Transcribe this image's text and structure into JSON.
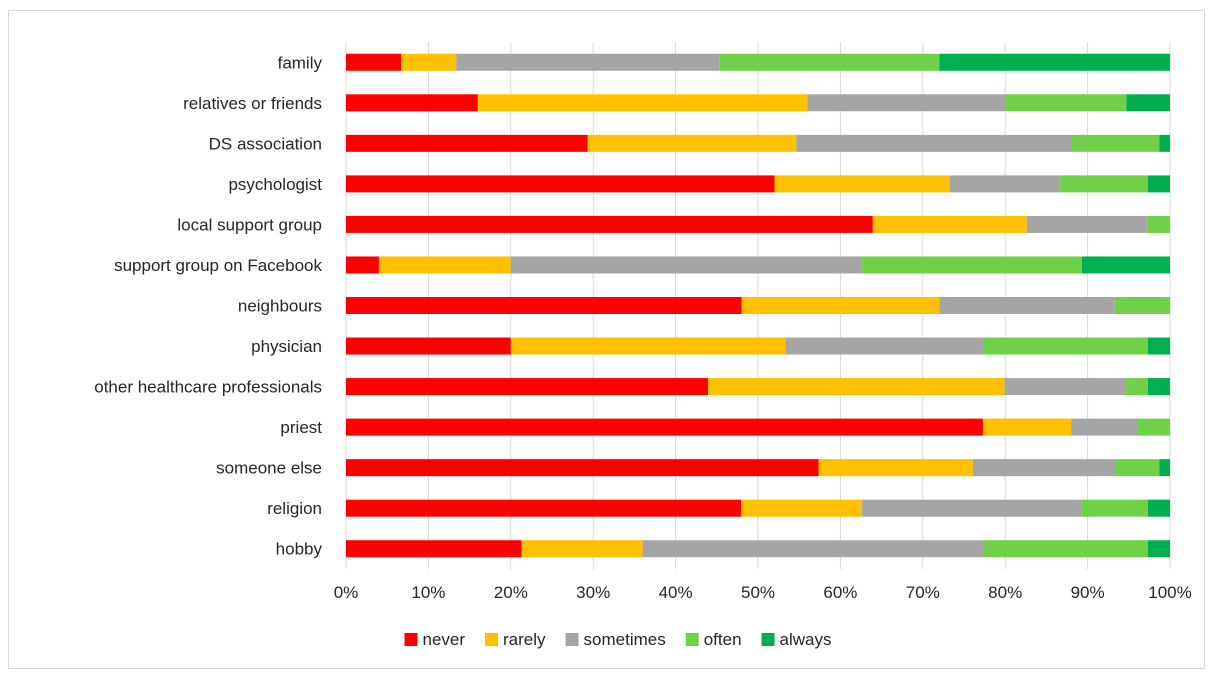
{
  "chart_data": {
    "type": "bar",
    "orientation": "horizontal",
    "stacked": "percent",
    "title": "",
    "xlabel": "",
    "ylabel": "",
    "xlim": [
      0,
      100
    ],
    "grid": true,
    "legend_position": "bottom",
    "categories": [
      "family",
      "relatives or friends",
      "DS association",
      "psychologist",
      "local support group",
      "support group on Facebook",
      "neighbours",
      "physician",
      "other healthcare professionals",
      "priest",
      "someone else",
      "religion",
      "hobby"
    ],
    "series": [
      {
        "name": "never",
        "color": "#ff0000",
        "values": [
          6.7,
          16,
          29.3,
          52,
          64,
          4,
          48,
          20,
          44,
          77.3,
          57.3,
          48,
          21.3
        ]
      },
      {
        "name": "rarely",
        "color": "#ffc000",
        "values": [
          6.7,
          40,
          25.3,
          21.3,
          18.7,
          16,
          24,
          33.3,
          36,
          10.7,
          18.7,
          14.7,
          14.7
        ]
      },
      {
        "name": "sometimes",
        "color": "#a5a5a5",
        "values": [
          32,
          24,
          33.3,
          13.3,
          14.7,
          42.7,
          21.3,
          24,
          14.7,
          8,
          17.3,
          26.7,
          41.3
        ]
      },
      {
        "name": "often",
        "color": "#70d048",
        "values": [
          26.7,
          14.7,
          10.7,
          10.7,
          2.7,
          26.7,
          6.7,
          20,
          2.7,
          4,
          5.3,
          8,
          20
        ]
      },
      {
        "name": "always",
        "color": "#00b050",
        "values": [
          28,
          5.3,
          1.3,
          2.7,
          0,
          10.7,
          0,
          2.7,
          2.7,
          0,
          1.3,
          2.7,
          2.7
        ]
      }
    ],
    "x_ticks": [
      "0%",
      "10%",
      "20%",
      "30%",
      "40%",
      "50%",
      "60%",
      "70%",
      "80%",
      "90%",
      "100%"
    ]
  },
  "colors": {
    "gridline": "#d9d9d9",
    "text": "#262626"
  }
}
